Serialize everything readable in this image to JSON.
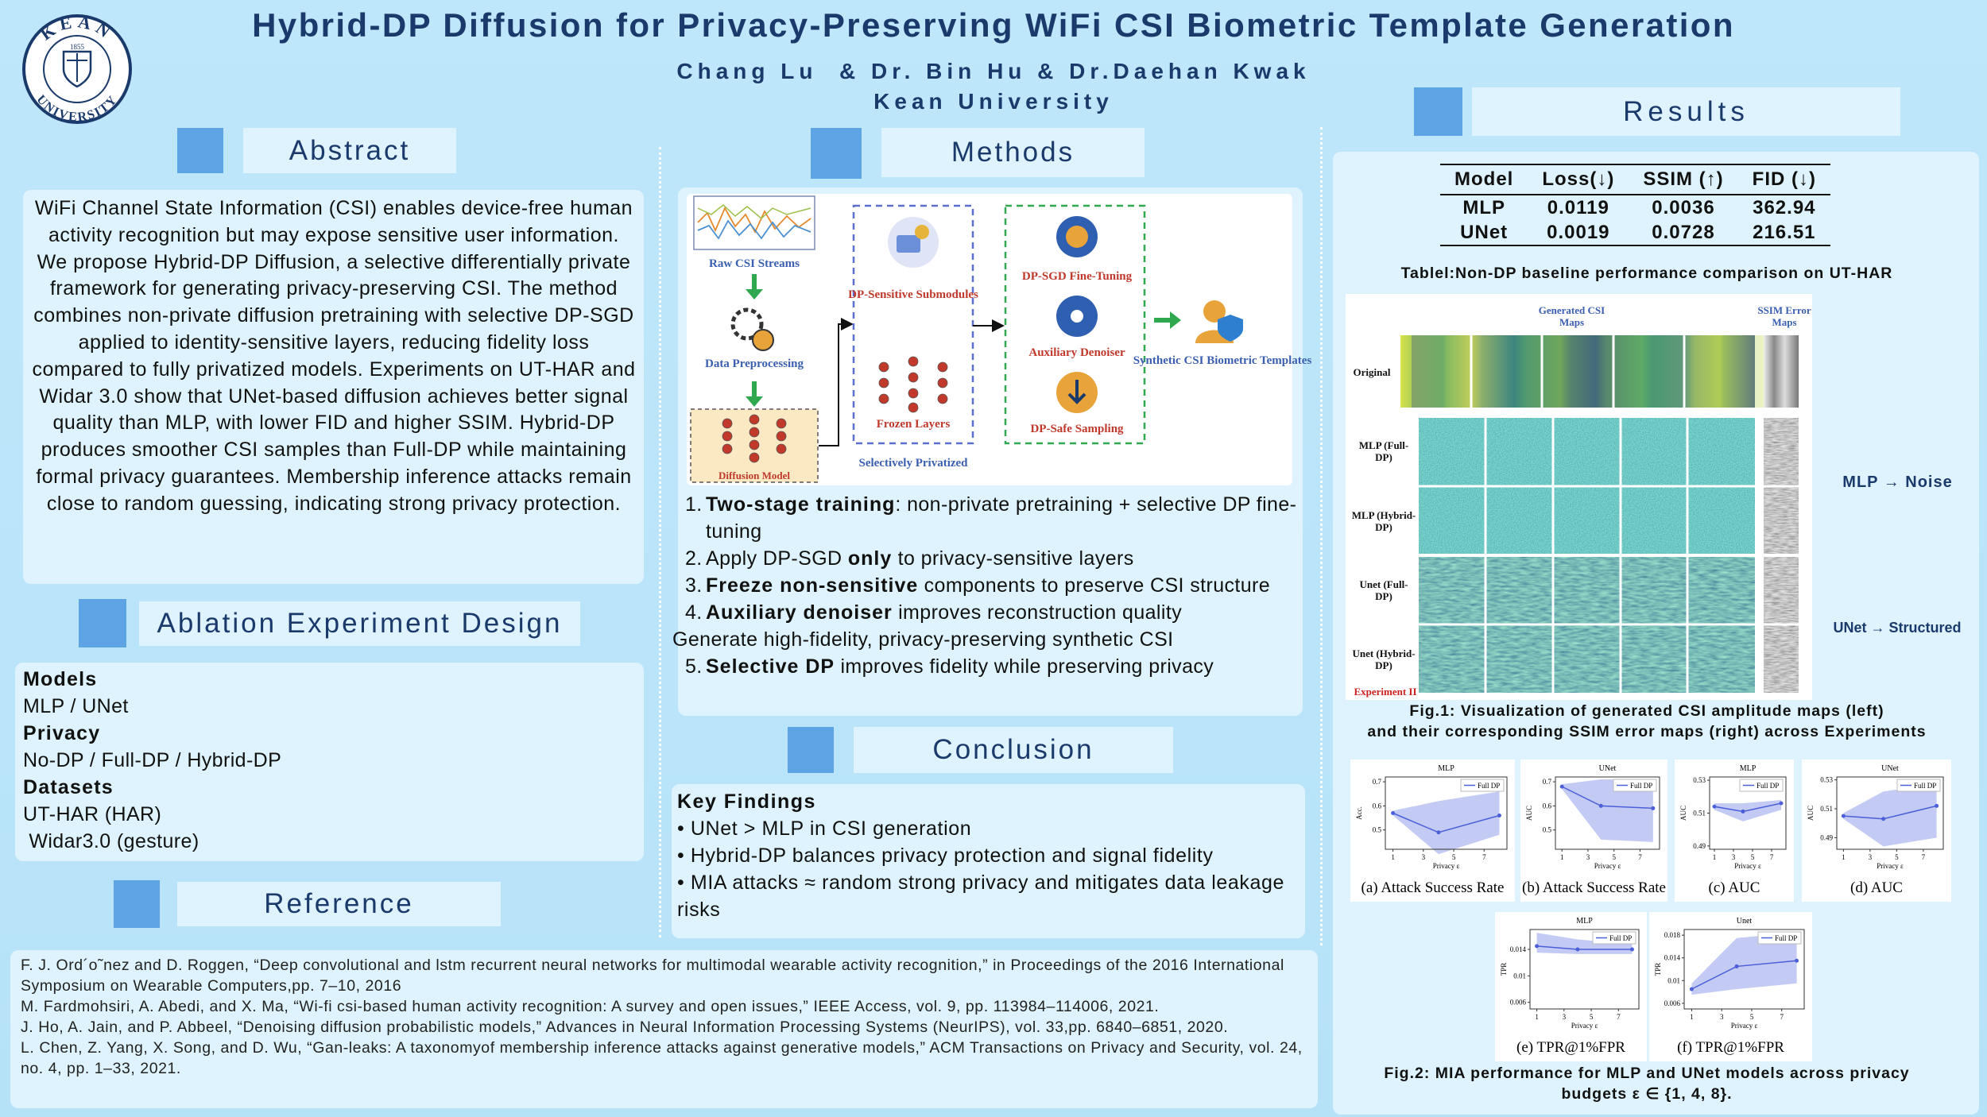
{
  "header": {
    "title": "Hybrid-DP Diffusion for Privacy-Preserving WiFi CSI Biometric Template Generation",
    "authors": "Chang Lu  & Dr. Bin Hu & Dr.Daehan Kwak",
    "affiliation": "Kean University",
    "logo": {
      "top": "KEAN",
      "bottom": "UNIVERSITY",
      "year": "1855"
    }
  },
  "abstract": {
    "heading": "Abstract",
    "text": "WiFi Channel State Information (CSI) enables device-free human activity recognition but may expose sensitive user information. We propose Hybrid-DP Diffusion, a selective differentially private framework for generating privacy-preserving CSI. The method combines non-private diffusion pretraining with selective DP-SGD applied to identity-sensitive layers, reducing fidelity loss compared to fully privatized models. Experiments on UT-HAR and Widar 3.0 show that UNet-based diffusion achieves better signal quality than MLP, with lower FID and higher SSIM. Hybrid-DP produces smoother CSI samples than Full-DP while maintaining formal privacy guarantees. Membership inference attacks remain close to random guessing, indicating strong privacy protection."
  },
  "ablation": {
    "heading": "Ablation Experiment Design",
    "groups": [
      {
        "title": "Models",
        "items": [
          "MLP / UNet"
        ]
      },
      {
        "title": "Privacy",
        "items": [
          "No-DP / Full-DP / Hybrid-DP"
        ]
      },
      {
        "title": "Datasets",
        "items": [
          "UT-HAR (HAR)",
          " Widar3.0 (gesture)"
        ]
      }
    ]
  },
  "reference": {
    "heading": "Reference",
    "entries": [
      "F. J. Ord´o˜nez and D. Roggen, “Deep convolutional and lstm recurrent neural networks for multimodal wearable activity recognition,” in Proceedings of the 2016 International Symposium on Wearable Computers,pp. 7–10, 2016",
      "M. Fardmohsiri, A. Abedi, and X. Ma, “Wi-fi csi-based human activity recognition: A survey and open issues,” IEEE Access, vol. 9, pp. 113984–114006, 2021.",
      "J. Ho, A. Jain, and P. Abbeel, “Denoising diffusion probabilistic models,” Advances in Neural Information Processing Systems (NeurIPS), vol. 33,pp. 6840–6851, 2020.",
      "L. Chen, Z. Yang, X. Song, and D. Wu, “Gan-leaks: A taxonomyof membership inference attacks against generative models,” ACM Transactions on Privacy and Security, vol. 24, no. 4, pp. 1–33, 2021."
    ]
  },
  "methods": {
    "heading": "Methods",
    "diagram": {
      "raw": "Raw CSI Streams",
      "preprocessing": "Data Preprocessing",
      "diffusion": "Diffusion Model",
      "sensitive": "DP-Sensitive Submodules",
      "frozen": "Frozen Layers",
      "privatized": "Selectively Privatized",
      "finetune": "DP-SGD Fine-Tuning",
      "denoiser": "Auxiliary Denoiser",
      "sampling": "DP-Safe Sampling",
      "output": "Synthetic CSI Biometric Templates"
    },
    "steps": [
      {
        "num": "1.",
        "parts": [
          {
            "t": "Two-stage training",
            "b": true
          },
          {
            "t": ": non-private pretraining + selective DP fine-tuning"
          }
        ]
      },
      {
        "num": "2.",
        "parts": [
          {
            "t": "Apply DP-SGD "
          },
          {
            "t": "only",
            "b": true
          },
          {
            "t": " to privacy-sensitive layers"
          }
        ]
      },
      {
        "num": "3.",
        "parts": [
          {
            "t": "Freeze non-sensitive",
            "b": true
          },
          {
            "t": " components to preserve CSI structure"
          }
        ]
      },
      {
        "num": "4.",
        "parts": [
          {
            "t": "Auxiliary denoiser",
            "b": true
          },
          {
            "t": " improves reconstruction quality"
          }
        ]
      },
      {
        "parts": [
          {
            "t": "Generate high-fidelity, privacy-preserving synthetic CSI"
          }
        ]
      },
      {
        "num": "5.",
        "parts": [
          {
            "t": "Selective DP",
            "b": true
          },
          {
            "t": " improves fidelity while preserving privacy"
          }
        ]
      }
    ]
  },
  "conclusion": {
    "heading": "Conclusion",
    "subheading": "Key Findings",
    "bullets": [
      "UNet > MLP in CSI generation",
      "Hybrid-DP balances privacy protection and signal fidelity",
      "MIA attacks ≈ random strong privacy and mitigates data leakage risks"
    ]
  },
  "results": {
    "heading": "Results",
    "table": {
      "columns": [
        "Model",
        "Loss(↓)",
        "SSIM (↑)",
        "FID (↓)"
      ],
      "rows": [
        [
          "MLP",
          0.0119,
          0.0036,
          362.94
        ],
        [
          "UNet",
          0.0019,
          0.0728,
          216.51
        ]
      ],
      "caption": "Tablel:Non-DP baseline performance comparison on UT-HAR"
    },
    "fig1": {
      "generated": "Generated CSI Maps",
      "ssim": "SSIM Error Maps",
      "rows": [
        "Original",
        "MLP (Full-DP)",
        "MLP (Hybrid-DP)",
        "Unet (Full-DP)",
        "Unet (Hybrid-DP)"
      ],
      "experiment": "Experiment II",
      "notes": [
        "MLP → Noise",
        "UNet → Structured"
      ],
      "caption": [
        "Fig.1: Visualization of generated CSI amplitude maps (left)",
        "and their corresponding SSIM error maps (right) across Experiments"
      ]
    },
    "fig2": {
      "legend": "Full DP",
      "xlabel": "Privacy ε",
      "x": [
        1,
        4,
        8
      ],
      "xlim": [
        0.5,
        8.5
      ],
      "xticks": [
        1,
        3,
        5,
        7
      ],
      "color": "#4a5fd8",
      "band_color": "#a9b3f0",
      "plots": [
        {
          "title": "MLP",
          "ylabel": "Acc.",
          "caption": "(a) Attack Success Rate",
          "ylim": [
            0.42,
            0.72
          ],
          "yticks": [
            0.5,
            0.6,
            0.7
          ],
          "mean": [
            0.57,
            0.49,
            0.56
          ],
          "lower": [
            0.56,
            0.4,
            0.48
          ],
          "upper": [
            0.58,
            0.62,
            0.66
          ]
        },
        {
          "title": "UNet",
          "ylabel": "AUC",
          "caption": "(b) Attack Success Rate",
          "ylim": [
            0.42,
            0.72
          ],
          "yticks": [
            0.5,
            0.6,
            0.7
          ],
          "mean": [
            0.68,
            0.6,
            0.59
          ],
          "lower": [
            0.67,
            0.46,
            0.45
          ],
          "upper": [
            0.69,
            0.71,
            0.71
          ]
        },
        {
          "title": "MLP",
          "ylabel": "AUC",
          "caption": "(c) AUC",
          "ylim": [
            0.488,
            0.532
          ],
          "yticks": [
            0.49,
            0.51,
            0.53
          ],
          "mean": [
            0.514,
            0.511,
            0.516
          ],
          "lower": [
            0.512,
            0.505,
            0.512
          ],
          "upper": [
            0.516,
            0.516,
            0.518
          ]
        },
        {
          "title": "UNet",
          "ylabel": "AUC",
          "caption": "(d) AUC",
          "ylim": [
            0.482,
            0.532
          ],
          "yticks": [
            0.49,
            0.51,
            0.53
          ],
          "mean": [
            0.505,
            0.503,
            0.512
          ],
          "lower": [
            0.503,
            0.484,
            0.49
          ],
          "upper": [
            0.507,
            0.522,
            0.527
          ]
        },
        {
          "title": "MLP",
          "ylabel": "TPR",
          "caption": "(e) TPR@1%FPR",
          "ylim": [
            0.005,
            0.017
          ],
          "yticks": [
            0.006,
            0.01,
            0.014
          ],
          "mean": [
            0.0145,
            0.014,
            0.014
          ],
          "lower": [
            0.0135,
            0.0133,
            0.0133
          ],
          "upper": [
            0.0165,
            0.0155,
            0.0148
          ]
        },
        {
          "title": "Unet",
          "ylabel": "TPR",
          "caption": "(f) TPR@1%FPR",
          "ylim": [
            0.005,
            0.019
          ],
          "yticks": [
            0.006,
            0.01,
            0.014,
            0.018
          ],
          "mean": [
            0.0085,
            0.0125,
            0.0135
          ],
          "lower": [
            0.0075,
            0.0085,
            0.0095
          ],
          "upper": [
            0.0095,
            0.0175,
            0.0185
          ]
        }
      ],
      "caption": "Fig.2: MIA performance for MLP and UNet models across privacy budgets ε ∈ {1, 4, 8}."
    }
  }
}
